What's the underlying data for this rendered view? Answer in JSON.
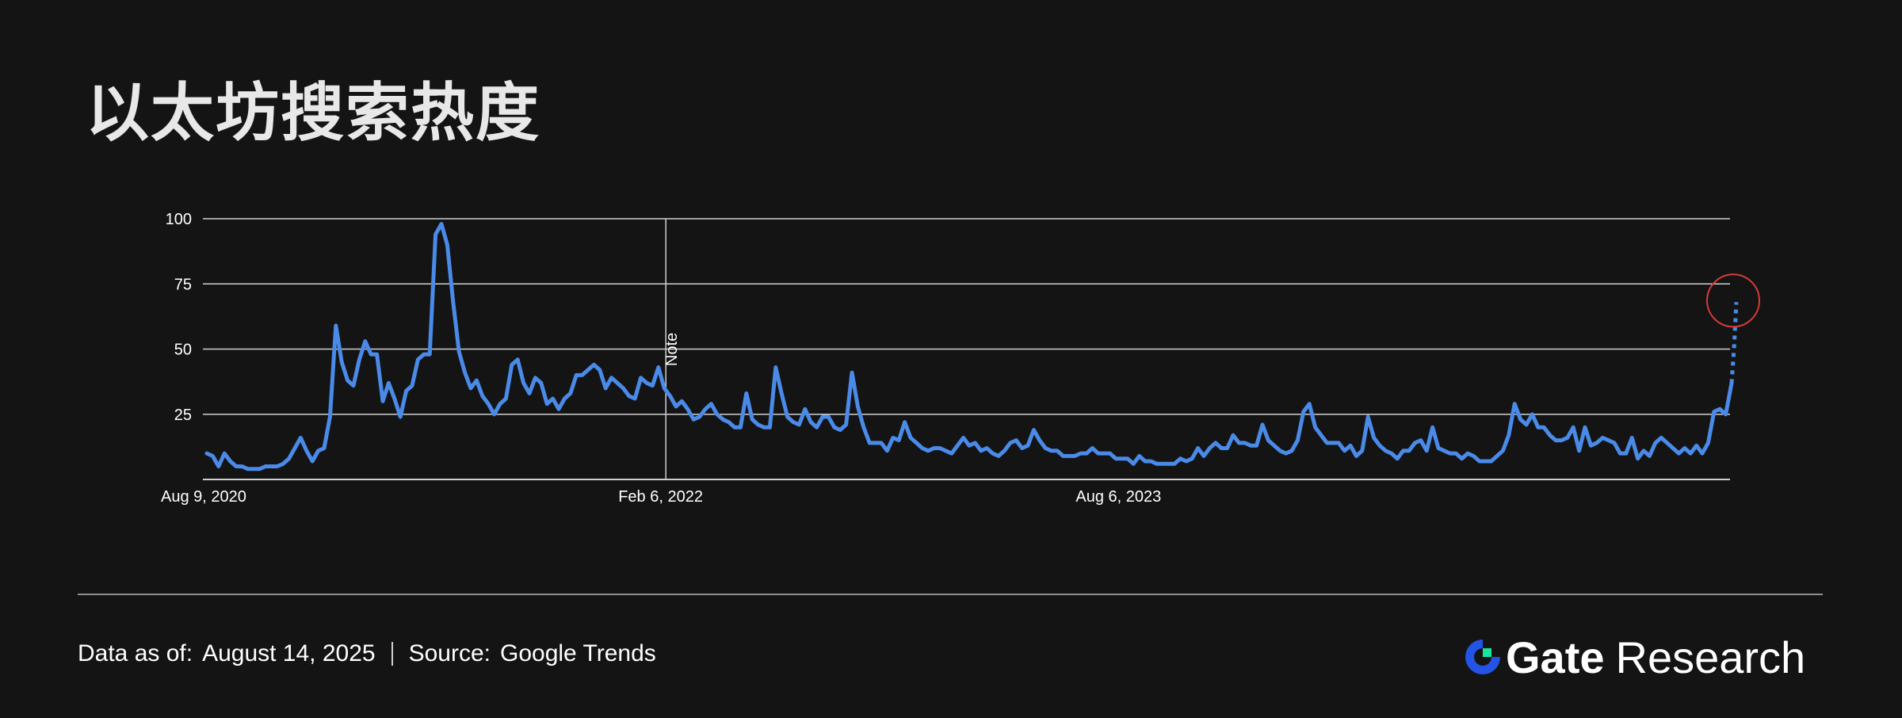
{
  "title": "以太坊搜索热度",
  "footer": {
    "data_as_of_label": "Data as of:",
    "data_as_of_value": "August 14, 2025",
    "source_label": "Source:",
    "source_value": "Google Trends"
  },
  "brand": {
    "name": "Gate",
    "suffix": "Research",
    "logo_icon": "gate-logo-icon",
    "accent": "#2354e6",
    "accent2": "#17e6a1"
  },
  "chart_data": {
    "type": "line",
    "series_color": "#4a8ae8",
    "highlight_color": "#d63a3a",
    "y_ticks": [
      25,
      50,
      75,
      100
    ],
    "ylim": [
      0,
      100
    ],
    "x_tick_labels": [
      {
        "label": "Aug 9, 2020",
        "index": 0
      },
      {
        "label": "Feb 6, 2022",
        "index": 78
      },
      {
        "label": "Aug 6, 2023",
        "index": 156
      }
    ],
    "annotation": {
      "label": "Note",
      "index": 78
    },
    "grid": true,
    "values": [
      10,
      9,
      5,
      10,
      7,
      5,
      5,
      4,
      4,
      4,
      5,
      5,
      5,
      6,
      8,
      12,
      16,
      11,
      7,
      11,
      12,
      24,
      59,
      45,
      38,
      36,
      46,
      53,
      48,
      48,
      30,
      37,
      31,
      24,
      34,
      36,
      46,
      48,
      48,
      94,
      98,
      90,
      68,
      49,
      41,
      35,
      38,
      32,
      29,
      25,
      29,
      31,
      44,
      46,
      37,
      33,
      39,
      37,
      29,
      31,
      27,
      31,
      33,
      40,
      40,
      42,
      44,
      42,
      35,
      39,
      37,
      35,
      32,
      31,
      39,
      37,
      36,
      43,
      35,
      32,
      28,
      30,
      27,
      23,
      24,
      27,
      29,
      25,
      23,
      22,
      20,
      20,
      33,
      23,
      21,
      20,
      20,
      43,
      33,
      24,
      22,
      21,
      27,
      22,
      20,
      24,
      24,
      20,
      19,
      21,
      41,
      28,
      20,
      14,
      14,
      14,
      11,
      16,
      15,
      22,
      16,
      14,
      12,
      11,
      12,
      12,
      11,
      10,
      13,
      16,
      13,
      14,
      11,
      12,
      10,
      9,
      11,
      14,
      15,
      12,
      13,
      19,
      15,
      12,
      11,
      11,
      9,
      9,
      9,
      10,
      10,
      12,
      10,
      10,
      10,
      8,
      8,
      8,
      6,
      9,
      7,
      7,
      6,
      6,
      6,
      6,
      8,
      7,
      8,
      12,
      9,
      12,
      14,
      12,
      12,
      17,
      14,
      14,
      13,
      13,
      21,
      15,
      13,
      11,
      10,
      11,
      15,
      26,
      29,
      20,
      17,
      14,
      14,
      14,
      11,
      13,
      9,
      11,
      24,
      16,
      13,
      11,
      10,
      8,
      11,
      11,
      14,
      15,
      11,
      20,
      12,
      11,
      10,
      10,
      8,
      10,
      9,
      7,
      7,
      7,
      9,
      11,
      17,
      29,
      23,
      21,
      25,
      20,
      20,
      17,
      15,
      15,
      16,
      20,
      11,
      20,
      13,
      14,
      16,
      15,
      14,
      10,
      10,
      16,
      8,
      11,
      9,
      14,
      16,
      14,
      12,
      10,
      12,
      10,
      13,
      10,
      14,
      26,
      27,
      25,
      37
    ],
    "projection": [
      37,
      50,
      68
    ],
    "projection_style": "dotted"
  }
}
